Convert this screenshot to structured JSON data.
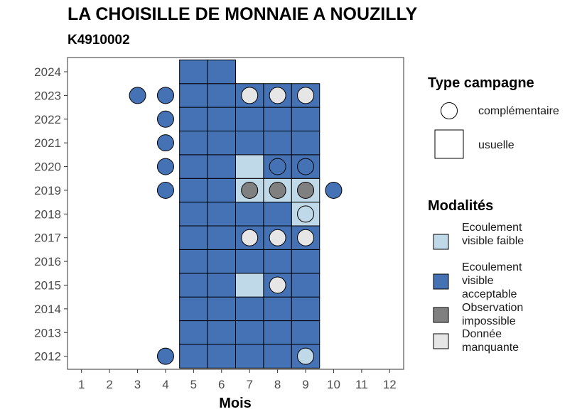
{
  "title": "LA CHOISILLE DE MONNAIE A NOUZILLY",
  "subtitle": "K4910002",
  "legend": {
    "type_title": "Type campagne",
    "type_items": [
      {
        "label": "complémentaire",
        "shape": "circle"
      },
      {
        "label": "usuelle",
        "shape": "square"
      }
    ],
    "mod_title": "Modalités",
    "mod_items": [
      {
        "label": "Ecoulement visible faible",
        "color": "#c0d9e8"
      },
      {
        "label": "Ecoulement visible acceptable",
        "color": "#4472b4"
      },
      {
        "label": "Observation impossible",
        "color": "#808080"
      },
      {
        "label": "Donnée manquante",
        "color": "#e6e6e6"
      }
    ]
  },
  "chart_data": {
    "type": "heatmap",
    "xlabel": "Mois",
    "ylabel": "",
    "x_ticks": [
      1,
      2,
      3,
      4,
      5,
      6,
      7,
      8,
      9,
      10,
      11,
      12
    ],
    "y_ticks": [
      2012,
      2013,
      2014,
      2015,
      2016,
      2017,
      2018,
      2019,
      2020,
      2021,
      2022,
      2023,
      2024
    ],
    "xlim": [
      0.5,
      12.5
    ],
    "ylim": [
      2011.45,
      2024.6
    ],
    "colors": {
      "faible": "#c0d9e8",
      "acceptable": "#4472b4",
      "impossible": "#808080",
      "manquante": "#e6e6e6"
    },
    "usuelle": [
      {
        "month": 5,
        "year": 2012,
        "mod": "acceptable"
      },
      {
        "month": 6,
        "year": 2012,
        "mod": "acceptable"
      },
      {
        "month": 7,
        "year": 2012,
        "mod": "acceptable"
      },
      {
        "month": 8,
        "year": 2012,
        "mod": "acceptable"
      },
      {
        "month": 9,
        "year": 2012,
        "mod": "acceptable"
      },
      {
        "month": 5,
        "year": 2013,
        "mod": "acceptable"
      },
      {
        "month": 6,
        "year": 2013,
        "mod": "acceptable"
      },
      {
        "month": 7,
        "year": 2013,
        "mod": "acceptable"
      },
      {
        "month": 8,
        "year": 2013,
        "mod": "acceptable"
      },
      {
        "month": 9,
        "year": 2013,
        "mod": "acceptable"
      },
      {
        "month": 5,
        "year": 2014,
        "mod": "acceptable"
      },
      {
        "month": 6,
        "year": 2014,
        "mod": "acceptable"
      },
      {
        "month": 7,
        "year": 2014,
        "mod": "acceptable"
      },
      {
        "month": 8,
        "year": 2014,
        "mod": "acceptable"
      },
      {
        "month": 9,
        "year": 2014,
        "mod": "acceptable"
      },
      {
        "month": 5,
        "year": 2015,
        "mod": "acceptable"
      },
      {
        "month": 6,
        "year": 2015,
        "mod": "acceptable"
      },
      {
        "month": 7,
        "year": 2015,
        "mod": "faible"
      },
      {
        "month": 8,
        "year": 2015,
        "mod": "acceptable"
      },
      {
        "month": 9,
        "year": 2015,
        "mod": "acceptable"
      },
      {
        "month": 5,
        "year": 2016,
        "mod": "acceptable"
      },
      {
        "month": 6,
        "year": 2016,
        "mod": "acceptable"
      },
      {
        "month": 7,
        "year": 2016,
        "mod": "acceptable"
      },
      {
        "month": 8,
        "year": 2016,
        "mod": "acceptable"
      },
      {
        "month": 9,
        "year": 2016,
        "mod": "acceptable"
      },
      {
        "month": 5,
        "year": 2017,
        "mod": "acceptable"
      },
      {
        "month": 6,
        "year": 2017,
        "mod": "acceptable"
      },
      {
        "month": 7,
        "year": 2017,
        "mod": "acceptable"
      },
      {
        "month": 8,
        "year": 2017,
        "mod": "acceptable"
      },
      {
        "month": 9,
        "year": 2017,
        "mod": "acceptable"
      },
      {
        "month": 5,
        "year": 2018,
        "mod": "acceptable"
      },
      {
        "month": 6,
        "year": 2018,
        "mod": "acceptable"
      },
      {
        "month": 7,
        "year": 2018,
        "mod": "acceptable"
      },
      {
        "month": 8,
        "year": 2018,
        "mod": "acceptable"
      },
      {
        "month": 9,
        "year": 2018,
        "mod": "faible"
      },
      {
        "month": 5,
        "year": 2019,
        "mod": "acceptable"
      },
      {
        "month": 6,
        "year": 2019,
        "mod": "acceptable"
      },
      {
        "month": 7,
        "year": 2019,
        "mod": "faible"
      },
      {
        "month": 8,
        "year": 2019,
        "mod": "faible"
      },
      {
        "month": 9,
        "year": 2019,
        "mod": "faible"
      },
      {
        "month": 5,
        "year": 2020,
        "mod": "acceptable"
      },
      {
        "month": 6,
        "year": 2020,
        "mod": "acceptable"
      },
      {
        "month": 7,
        "year": 2020,
        "mod": "faible"
      },
      {
        "month": 8,
        "year": 2020,
        "mod": "acceptable"
      },
      {
        "month": 9,
        "year": 2020,
        "mod": "acceptable"
      },
      {
        "month": 5,
        "year": 2021,
        "mod": "acceptable"
      },
      {
        "month": 6,
        "year": 2021,
        "mod": "acceptable"
      },
      {
        "month": 7,
        "year": 2021,
        "mod": "acceptable"
      },
      {
        "month": 8,
        "year": 2021,
        "mod": "acceptable"
      },
      {
        "month": 9,
        "year": 2021,
        "mod": "acceptable"
      },
      {
        "month": 5,
        "year": 2022,
        "mod": "acceptable"
      },
      {
        "month": 6,
        "year": 2022,
        "mod": "acceptable"
      },
      {
        "month": 7,
        "year": 2022,
        "mod": "acceptable"
      },
      {
        "month": 8,
        "year": 2022,
        "mod": "acceptable"
      },
      {
        "month": 9,
        "year": 2022,
        "mod": "acceptable"
      },
      {
        "month": 5,
        "year": 2023,
        "mod": "acceptable"
      },
      {
        "month": 6,
        "year": 2023,
        "mod": "acceptable"
      },
      {
        "month": 7,
        "year": 2023,
        "mod": "acceptable"
      },
      {
        "month": 8,
        "year": 2023,
        "mod": "acceptable"
      },
      {
        "month": 9,
        "year": 2023,
        "mod": "acceptable"
      },
      {
        "month": 5,
        "year": 2024,
        "mod": "acceptable"
      },
      {
        "month": 6,
        "year": 2024,
        "mod": "acceptable"
      }
    ],
    "complementaire": [
      {
        "month": 4,
        "year": 2012,
        "mod": "acceptable"
      },
      {
        "month": 9,
        "year": 2012,
        "mod": "faible"
      },
      {
        "month": 8,
        "year": 2015,
        "mod": "manquante"
      },
      {
        "month": 7,
        "year": 2017,
        "mod": "manquante"
      },
      {
        "month": 8,
        "year": 2017,
        "mod": "manquante"
      },
      {
        "month": 9,
        "year": 2017,
        "mod": "manquante"
      },
      {
        "month": 9,
        "year": 2018,
        "mod": "faible"
      },
      {
        "month": 4,
        "year": 2019,
        "mod": "acceptable"
      },
      {
        "month": 7,
        "year": 2019,
        "mod": "impossible"
      },
      {
        "month": 8,
        "year": 2019,
        "mod": "impossible"
      },
      {
        "month": 9,
        "year": 2019,
        "mod": "impossible"
      },
      {
        "month": 10,
        "year": 2019,
        "mod": "acceptable"
      },
      {
        "month": 4,
        "year": 2020,
        "mod": "acceptable"
      },
      {
        "month": 8,
        "year": 2020,
        "mod": "acceptable"
      },
      {
        "month": 9,
        "year": 2020,
        "mod": "acceptable"
      },
      {
        "month": 4,
        "year": 2021,
        "mod": "acceptable"
      },
      {
        "month": 4,
        "year": 2022,
        "mod": "acceptable"
      },
      {
        "month": 3,
        "year": 2023,
        "mod": "acceptable"
      },
      {
        "month": 4,
        "year": 2023,
        "mod": "acceptable"
      },
      {
        "month": 7,
        "year": 2023,
        "mod": "manquante"
      },
      {
        "month": 8,
        "year": 2023,
        "mod": "manquante"
      },
      {
        "month": 9,
        "year": 2023,
        "mod": "manquante"
      }
    ]
  }
}
